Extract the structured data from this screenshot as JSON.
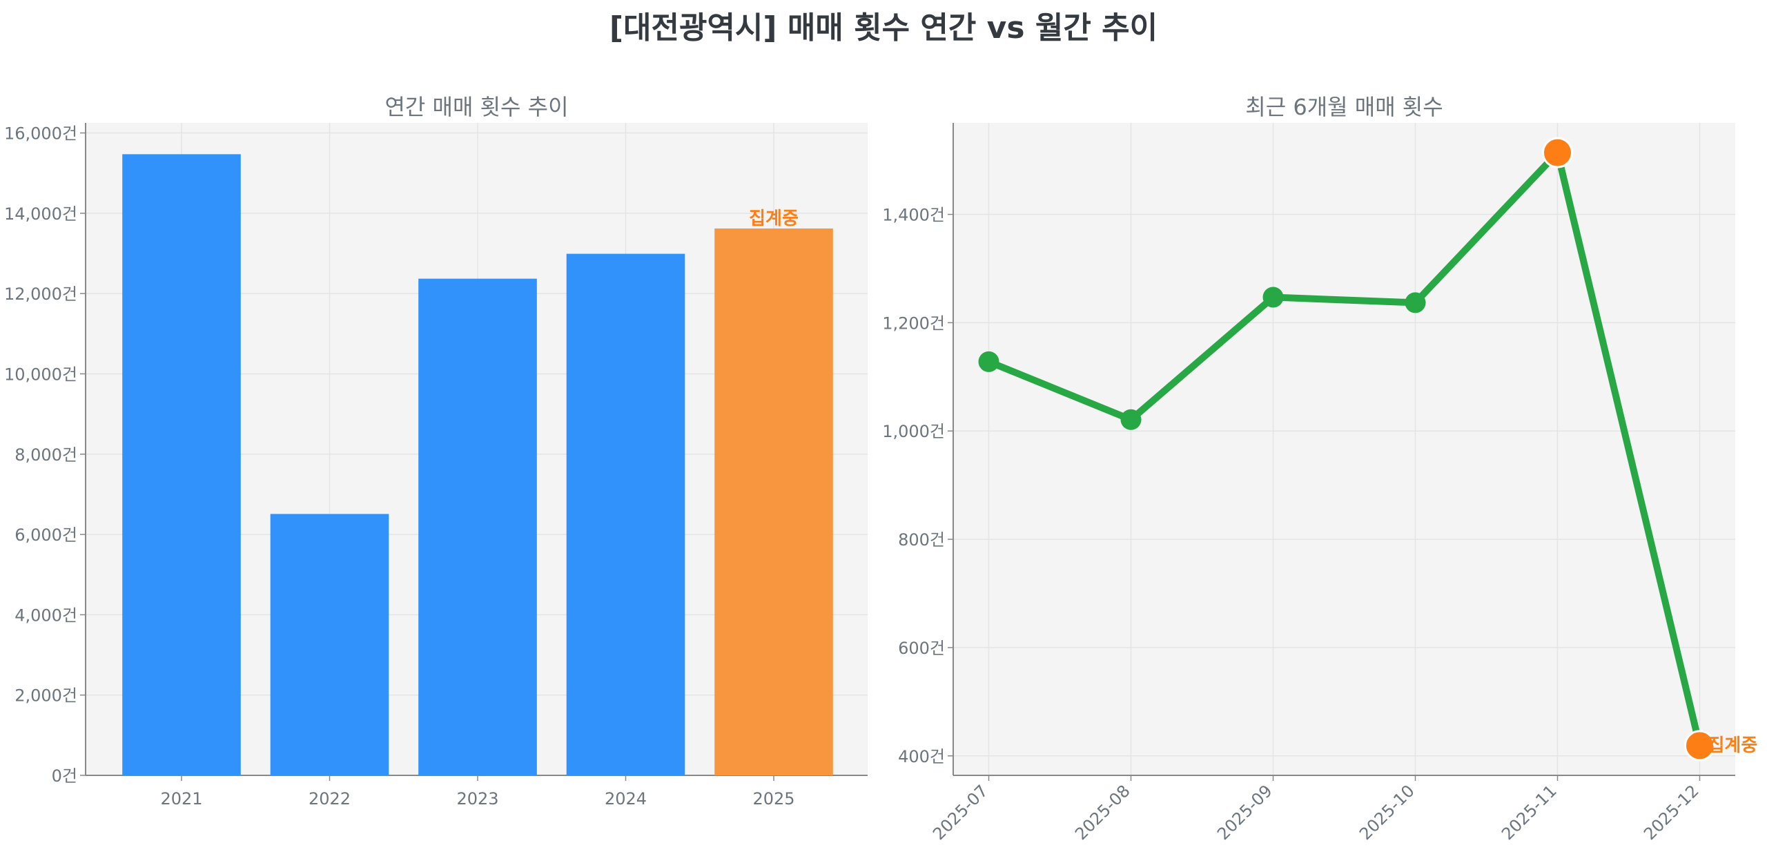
{
  "title": "[대전광역시] 매매 횟수 연간 vs 월간 추이",
  "colors": {
    "bar": "#3192fc",
    "bar_partial": "#f89640",
    "line": "#28a745",
    "marker_highlight": "#fd7e14",
    "annotation": "#fd7e14",
    "axes_bg": "#f4f4f4"
  },
  "chart_data": [
    {
      "type": "bar",
      "title": "연간 매매 횟수 추이",
      "categories": [
        "2021",
        "2022",
        "2023",
        "2024",
        "2025"
      ],
      "values": [
        15470,
        6510,
        12370,
        12990,
        13620
      ],
      "ylim": [
        0,
        16250
      ],
      "yticks": [
        0,
        2000,
        4000,
        6000,
        8000,
        10000,
        12000,
        14000,
        16000
      ],
      "ytick_labels": [
        "0건",
        "2,000건",
        "4,000건",
        "6,000건",
        "8,000건",
        "10,000건",
        "12,000건",
        "14,000건",
        "16,000건"
      ],
      "highlight": {
        "category": "2025",
        "label": "집계중"
      },
      "grid": true
    },
    {
      "type": "line",
      "title": "최근 6개월 매매 횟수",
      "categories": [
        "2025-07",
        "2025-08",
        "2025-09",
        "2025-10",
        "2025-11",
        "2025-12"
      ],
      "values": [
        1128,
        1021,
        1247,
        1237,
        1514,
        419
      ],
      "ylim": [
        364,
        1569
      ],
      "yticks": [
        400,
        600,
        800,
        1000,
        1200,
        1400
      ],
      "ytick_labels": [
        "400건",
        "600건",
        "800건",
        "1,000건",
        "1,200건",
        "1,400건"
      ],
      "highlight_points": [
        "2025-11",
        "2025-12"
      ],
      "annotation": {
        "category": "2025-12",
        "label": "집계중"
      },
      "grid": true
    }
  ]
}
